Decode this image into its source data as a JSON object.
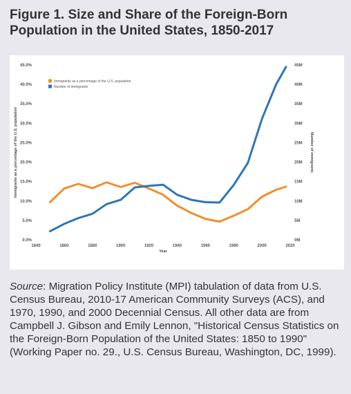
{
  "title": "Figure 1. Size and Share of the Foreign-Born Population in the United States, 1850-2017",
  "source": {
    "label": "Source",
    "text": ": Migration Policy Institute (MPI) tabulation of data from U.S. Census Bureau, 2010-17 American Community Surveys (ACS), and 1970, 1990, and 2000 Decennial Census. All other data are from Campbell J. Gibson and Emily Lennon, \"Historical Census Statistics on the Foreign-Born Population of the United States: 1850 to 1990\" (Working Paper no. 29., U.S. Census Bureau, Washington, DC, 1999)."
  },
  "chart_data": {
    "type": "line",
    "xlabel": "Year",
    "ylabel_left": "Immigrants as a percentage of the U.S. population",
    "ylabel_right": "Number of immigrants",
    "xlim": [
      1840,
      2020
    ],
    "ylim_left": [
      0,
      45
    ],
    "ylim_right": [
      0,
      45
    ],
    "x_ticks": [
      1840,
      1860,
      1880,
      1900,
      1920,
      1940,
      1960,
      1980,
      2000,
      2020
    ],
    "left_ticks": [
      "0.0%",
      "5.0%",
      "10.0%",
      "15.0%",
      "20.0%",
      "25.0%",
      "30.0%",
      "35.0%",
      "40.0%",
      "45.0%"
    ],
    "right_ticks": [
      "0M",
      "5M",
      "10M",
      "15M",
      "20M",
      "25M",
      "30M",
      "35M",
      "40M",
      "45M"
    ],
    "legend_position": "top-left",
    "grid": false,
    "series": [
      {
        "name": "Immigrants as a percentage of the U.S. population",
        "axis": "left",
        "color": "#f28e2c",
        "x": [
          1850,
          1860,
          1870,
          1880,
          1890,
          1900,
          1910,
          1920,
          1930,
          1940,
          1950,
          1960,
          1970,
          1980,
          1990,
          2000,
          2010,
          2017
        ],
        "values": [
          9.7,
          13.2,
          14.4,
          13.3,
          14.8,
          13.6,
          14.7,
          13.2,
          11.6,
          8.8,
          6.9,
          5.4,
          4.7,
          6.2,
          7.9,
          11.1,
          12.9,
          13.7
        ]
      },
      {
        "name": "Number of immigrants",
        "axis": "right",
        "color": "#2e75b6",
        "x": [
          1850,
          1860,
          1870,
          1880,
          1890,
          1900,
          1910,
          1920,
          1930,
          1940,
          1950,
          1960,
          1970,
          1980,
          1990,
          2000,
          2010,
          2017
        ],
        "values": [
          2.2,
          4.1,
          5.6,
          6.7,
          9.2,
          10.3,
          13.5,
          13.9,
          14.2,
          11.6,
          10.3,
          9.7,
          9.6,
          14.1,
          19.8,
          31.1,
          40.0,
          44.5
        ]
      }
    ]
  }
}
